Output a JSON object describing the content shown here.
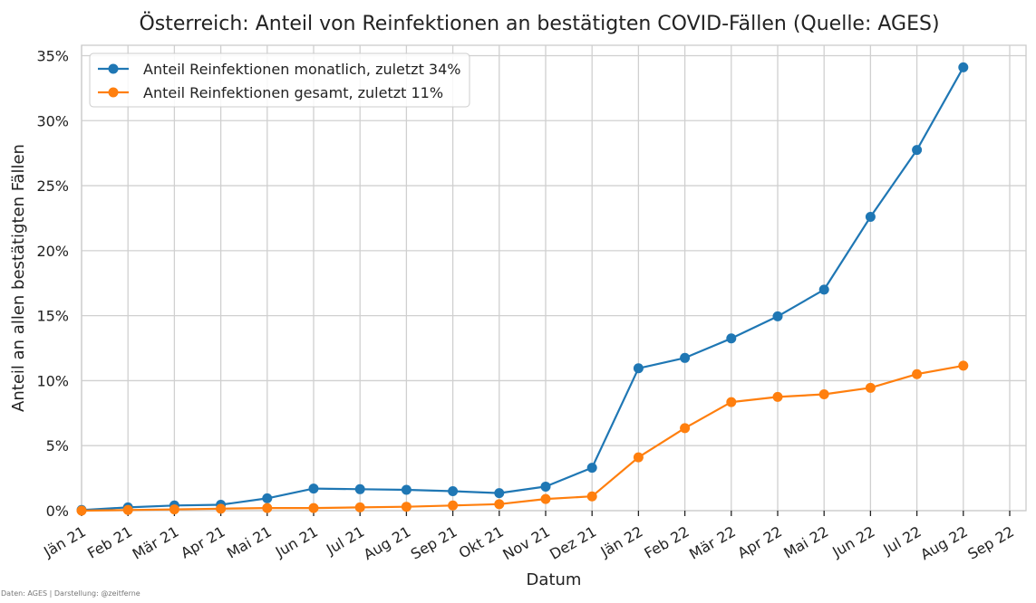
{
  "chart_data": {
    "type": "line",
    "title": "Österreich: Anteil von Reinfektionen an bestätigten COVID-Fällen (Quelle: AGES)",
    "xlabel": "Datum",
    "ylabel": "Anteil an allen bestätigten Fällen",
    "x_ticks": [
      "Jän 21",
      "Feb 21",
      "Mär 21",
      "Apr 21",
      "Mai 21",
      "Jun 21",
      "Jul 21",
      "Aug 21",
      "Sep 21",
      "Okt 21",
      "Nov 21",
      "Dez 21",
      "Jän 22",
      "Feb 22",
      "Mär 22",
      "Apr 22",
      "Mai 22",
      "Jun 22",
      "Jul 22",
      "Aug 22",
      "Sep 22"
    ],
    "y_ticks": [
      "0%",
      "5%",
      "10%",
      "15%",
      "20%",
      "25%",
      "30%",
      "35%"
    ],
    "ylim": [
      0,
      35.8
    ],
    "grid": true,
    "legend_position": "top-left",
    "series": [
      {
        "name": "Anteil Reinfektionen monatlich, zuletzt 34%",
        "color": "#1f77b4",
        "values": [
          0.05,
          0.25,
          0.4,
          0.45,
          0.95,
          1.7,
          1.65,
          1.6,
          1.5,
          1.35,
          1.85,
          3.3,
          10.95,
          11.75,
          13.25,
          14.95,
          17.0,
          22.6,
          27.75,
          34.1
        ]
      },
      {
        "name": "Anteil Reinfektionen gesamt, zuletzt 11%",
        "color": "#ff7f0e",
        "values": [
          0.0,
          0.05,
          0.1,
          0.15,
          0.2,
          0.2,
          0.25,
          0.3,
          0.4,
          0.5,
          0.9,
          1.1,
          4.1,
          6.35,
          8.35,
          8.75,
          8.95,
          9.45,
          10.5,
          11.15
        ]
      }
    ]
  },
  "credit": "Daten: AGES | Darstellung: @zeitferne"
}
